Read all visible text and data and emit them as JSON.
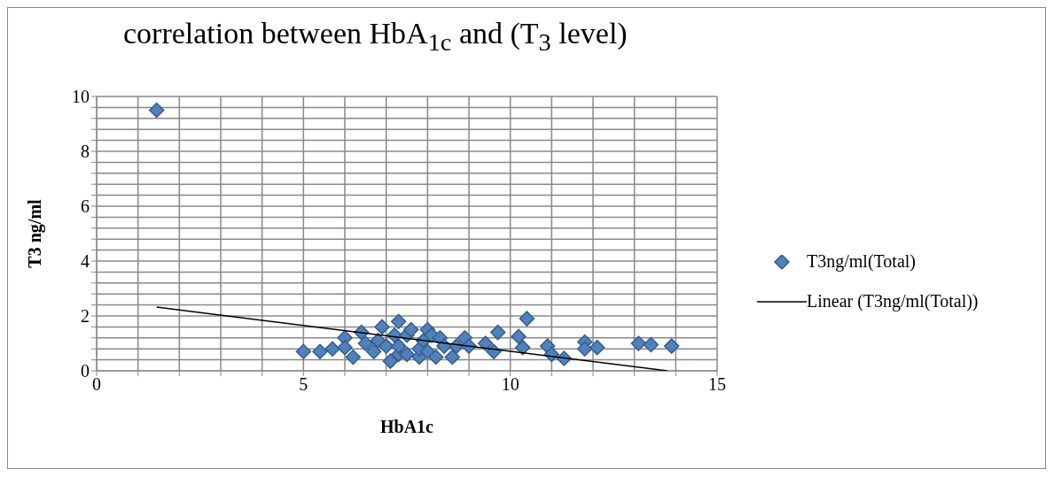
{
  "chart_data": {
    "type": "scatter",
    "title": "correlation between HbA$_{1c}$ and (T$_{3}$ level)",
    "xlabel": "HbA1c",
    "ylabel": "T3 ng/ml",
    "xlim": [
      0,
      15
    ],
    "xticks": [
      0,
      {
        "value": 1,
        "label": null
      },
      {
        "value": 2,
        "label": null
      },
      {
        "value": 3,
        "label": null
      },
      {
        "value": 4,
        "label": null
      },
      5,
      {
        "value": 6,
        "label": null
      },
      {
        "value": 7,
        "label": null
      },
      {
        "value": 8,
        "label": null
      },
      {
        "value": 9,
        "label": null
      },
      10,
      {
        "value": 11,
        "label": null
      },
      {
        "value": 12,
        "label": null
      },
      {
        "value": 13,
        "label": null
      },
      {
        "value": 14,
        "label": null
      },
      15
    ],
    "ylim": [
      0,
      10
    ],
    "yticks": [
      0,
      {
        "value": 0.4,
        "label": null
      },
      {
        "value": 0.8,
        "label": null
      },
      {
        "value": 1.2,
        "label": null
      },
      {
        "value": 1.6,
        "label": null
      },
      2,
      {
        "value": 2.4,
        "label": null
      },
      {
        "value": 2.8,
        "label": null
      },
      {
        "value": 3.2,
        "label": null
      },
      {
        "value": 3.6,
        "label": null
      },
      4,
      {
        "value": 4.4,
        "label": null
      },
      {
        "value": 4.8,
        "label": null
      },
      {
        "value": 5.2,
        "label": null
      },
      {
        "value": 5.6,
        "label": null
      },
      6,
      {
        "value": 6.4,
        "label": null
      },
      {
        "value": 6.8,
        "label": null
      },
      {
        "value": 7.2,
        "label": null
      },
      {
        "value": 7.6,
        "label": null
      },
      8,
      {
        "value": 8.4,
        "label": null
      },
      {
        "value": 8.8,
        "label": null
      },
      {
        "value": 9.2,
        "label": null
      },
      {
        "value": 9.6,
        "label": null
      },
      10
    ],
    "grid": true,
    "legend": "right",
    "marker": "diamond",
    "series": [
      {
        "name": "T3ng/ml(Total)",
        "type": "scatter",
        "color": "#4f81bd",
        "x": [
          1.45,
          5.0,
          5.4,
          5.7,
          6.0,
          6.0,
          6.2,
          6.4,
          6.5,
          6.7,
          6.8,
          6.9,
          7.0,
          7.1,
          7.3,
          7.2,
          7.3,
          7.3,
          7.5,
          7.5,
          7.6,
          7.8,
          7.8,
          7.9,
          8.0,
          8.0,
          8.1,
          8.2,
          8.3,
          8.4,
          8.6,
          8.7,
          8.9,
          9.0,
          9.4,
          9.6,
          9.7,
          10.2,
          10.3,
          10.4,
          10.9,
          11.0,
          11.3,
          11.8,
          11.8,
          12.1,
          13.1,
          13.4,
          13.9
        ],
        "values": [
          9.5,
          0.7,
          0.7,
          0.8,
          1.2,
          0.85,
          0.5,
          1.4,
          1.0,
          0.7,
          1.1,
          1.6,
          0.9,
          0.35,
          0.6,
          1.3,
          1.8,
          0.9,
          1.3,
          0.6,
          1.5,
          0.5,
          0.8,
          1.1,
          1.5,
          0.7,
          1.3,
          0.5,
          1.2,
          0.9,
          0.5,
          0.9,
          1.2,
          0.9,
          1.0,
          0.7,
          1.4,
          1.25,
          0.85,
          1.9,
          0.9,
          0.6,
          0.45,
          1.05,
          0.8,
          0.85,
          1.0,
          0.95,
          0.9
        ]
      },
      {
        "name": "Linear (T3ng/ml(Total))",
        "type": "line",
        "color": "#000000",
        "marker": "none",
        "x": [
          1.45,
          13.8
        ],
        "values": [
          2.32,
          0
        ]
      }
    ]
  }
}
